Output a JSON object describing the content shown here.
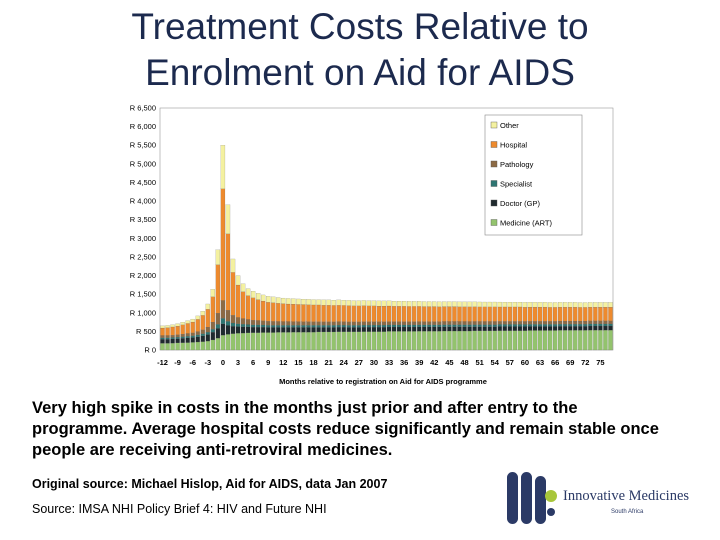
{
  "slide": {
    "title_line1": "Treatment Costs Relative to",
    "title_line2": "Enrolment on Aid for AIDS",
    "body": "Very high spike in costs in the months just prior and after entry to the programme. Average hospital costs reduce significantly and remain stable once people are receiving anti-retroviral medicines.",
    "source1": "Original source: Michael Hislop, Aid for AIDS, data Jan 2007",
    "source2": "Source: IMSA NHI Policy Brief 4: HIV and Future NHI"
  },
  "logo": {
    "name": "Innovative Medicines",
    "sub": "South Africa",
    "color": "#2b3a66"
  },
  "chart_data": {
    "type": "bar",
    "stacked": true,
    "title": "",
    "xlabel": "Months relative to registration on Aid for AIDS programme",
    "ylabel": "",
    "ylim": [
      0,
      6500
    ],
    "y_ticks": [
      "R 0",
      "R 500",
      "R 1,000",
      "R 1,500",
      "R 2,000",
      "R 2,500",
      "R 3,000",
      "R 3,500",
      "R 4,000",
      "R 4,500",
      "R 5,000",
      "R 5,500",
      "R 6,000",
      "R 6,500"
    ],
    "x": [
      -12,
      -11,
      -10,
      -9,
      -8,
      -7,
      -6,
      -5,
      -4,
      -3,
      -2,
      -1,
      0,
      1,
      2,
      3,
      4,
      5,
      6,
      7,
      8,
      9,
      10,
      11,
      12,
      13,
      14,
      15,
      16,
      17,
      18,
      19,
      20,
      21,
      22,
      23,
      24,
      25,
      26,
      27,
      28,
      29,
      30,
      31,
      32,
      33,
      34,
      35,
      36,
      37,
      38,
      39,
      40,
      41,
      42,
      43,
      44,
      45,
      46,
      47,
      48,
      49,
      50,
      51,
      52,
      53,
      54,
      55,
      56,
      57,
      58,
      59,
      60,
      61,
      62,
      63,
      64,
      65,
      66,
      67,
      68,
      69,
      70,
      71,
      72,
      73,
      74,
      75,
      76,
      77
    ],
    "x_tick_labels": [
      "-12",
      "-9",
      "-6",
      "-3",
      "0",
      "3",
      "6",
      "9",
      "12",
      "15",
      "18",
      "21",
      "24",
      "27",
      "30",
      "33",
      "36",
      "39",
      "42",
      "45",
      "48",
      "51",
      "54",
      "57",
      "60",
      "63",
      "66",
      "69",
      "72",
      "75"
    ],
    "legend_position": "top-right",
    "series": [
      {
        "name": "Medicine (ART)",
        "color": "#93c36d",
        "values": [
          180,
          180,
          185,
          190,
          195,
          200,
          205,
          215,
          225,
          240,
          270,
          320,
          400,
          420,
          440,
          450,
          455,
          460,
          465,
          465,
          470,
          470,
          470,
          475,
          475,
          475,
          480,
          480,
          480,
          480,
          480,
          485,
          485,
          485,
          485,
          490,
          490,
          490,
          490,
          490,
          495,
          495,
          495,
          495,
          495,
          500,
          500,
          500,
          500,
          500,
          500,
          505,
          505,
          505,
          505,
          505,
          510,
          510,
          510,
          510,
          510,
          510,
          515,
          515,
          515,
          515,
          515,
          520,
          520,
          520,
          520,
          520,
          520,
          525,
          525,
          525,
          525,
          525,
          525,
          530,
          530,
          530,
          530,
          530,
          530,
          535,
          535,
          535,
          535,
          535
        ]
      },
      {
        "name": "Doctor (GP)",
        "color": "#1f2a2e",
        "values": [
          110,
          110,
          112,
          115,
          120,
          125,
          130,
          140,
          155,
          175,
          210,
          260,
          300,
          240,
          200,
          180,
          170,
          160,
          150,
          150,
          145,
          140,
          140,
          135,
          135,
          135,
          130,
          130,
          130,
          130,
          130,
          125,
          125,
          125,
          125,
          125,
          125,
          120,
          120,
          120,
          120,
          120,
          120,
          120,
          120,
          118,
          118,
          118,
          118,
          118,
          118,
          115,
          115,
          115,
          115,
          115,
          115,
          115,
          115,
          115,
          115,
          115,
          112,
          112,
          112,
          112,
          112,
          112,
          112,
          112,
          112,
          112,
          112,
          110,
          110,
          110,
          110,
          110,
          110,
          110,
          110,
          110,
          110,
          110,
          110,
          110,
          110,
          110,
          110,
          110
        ]
      },
      {
        "name": "Specialist",
        "color": "#2e7572",
        "values": [
          40,
          40,
          40,
          42,
          44,
          46,
          48,
          52,
          58,
          66,
          80,
          110,
          150,
          110,
          85,
          75,
          70,
          65,
          62,
          60,
          58,
          56,
          55,
          55,
          55,
          55,
          55,
          55,
          55,
          55,
          55,
          55,
          55,
          55,
          55,
          55,
          55,
          55,
          55,
          55,
          55,
          55,
          55,
          55,
          55,
          55,
          55,
          55,
          55,
          55,
          55,
          55,
          55,
          55,
          55,
          55,
          55,
          55,
          55,
          55,
          55,
          55,
          55,
          55,
          55,
          55,
          55,
          55,
          55,
          55,
          55,
          55,
          55,
          55,
          55,
          55,
          55,
          55,
          55,
          55,
          55,
          55,
          55,
          55,
          55,
          55,
          55,
          55,
          55,
          55
        ]
      },
      {
        "name": "Pathology",
        "color": "#8c6a45",
        "values": [
          60,
          60,
          62,
          65,
          68,
          72,
          78,
          88,
          105,
          135,
          190,
          300,
          480,
          300,
          210,
          170,
          150,
          135,
          125,
          118,
          112,
          108,
          105,
          102,
          100,
          100,
          98,
          98,
          96,
          96,
          95,
          95,
          94,
          94,
          93,
          93,
          92,
          92,
          92,
          91,
          91,
          90,
          90,
          90,
          90,
          89,
          89,
          89,
          88,
          88,
          88,
          88,
          87,
          87,
          87,
          87,
          86,
          86,
          86,
          86,
          86,
          85,
          85,
          85,
          85,
          85,
          85,
          84,
          84,
          84,
          84,
          84,
          84,
          83,
          83,
          83,
          83,
          83,
          83,
          82,
          82,
          82,
          82,
          82,
          82,
          82,
          82,
          82,
          82,
          82
        ]
      },
      {
        "name": "Hospital",
        "color": "#ed8a2e",
        "values": [
          200,
          210,
          220,
          230,
          250,
          270,
          290,
          330,
          390,
          480,
          680,
          1300,
          3000,
          2050,
          1150,
          870,
          720,
          640,
          600,
          560,
          530,
          510,
          500,
          490,
          480,
          470,
          470,
          460,
          460,
          455,
          450,
          450,
          445,
          445,
          440,
          440,
          435,
          435,
          430,
          430,
          430,
          425,
          425,
          420,
          420,
          420,
          415,
          415,
          415,
          410,
          410,
          410,
          405,
          405,
          405,
          400,
          400,
          400,
          400,
          395,
          395,
          395,
          395,
          390,
          390,
          390,
          390,
          385,
          385,
          385,
          385,
          385,
          380,
          380,
          380,
          380,
          380,
          375,
          375,
          375,
          375,
          375,
          375,
          370,
          370,
          370,
          370,
          370,
          370,
          370
        ]
      },
      {
        "name": "Other",
        "color": "#f4f1a0",
        "values": [
          60,
          60,
          62,
          65,
          70,
          75,
          80,
          90,
          110,
          140,
          200,
          400,
          1170,
          780,
          360,
          255,
          215,
          190,
          178,
          170,
          164,
          160,
          157,
          153,
          150,
          150,
          148,
          148,
          146,
          145,
          145,
          144,
          144,
          143,
          142,
          142,
          141,
          141,
          140,
          140,
          140,
          139,
          139,
          138,
          138,
          138,
          137,
          137,
          137,
          136,
          136,
          136,
          135,
          135,
          135,
          135,
          134,
          134,
          134,
          134,
          133,
          133,
          133,
          133,
          132,
          132,
          132,
          132,
          131,
          131,
          131,
          131,
          130,
          130,
          130,
          130,
          130,
          129,
          129,
          129,
          129,
          128,
          128,
          128,
          128,
          127,
          127,
          127,
          127,
          127
        ]
      }
    ]
  }
}
